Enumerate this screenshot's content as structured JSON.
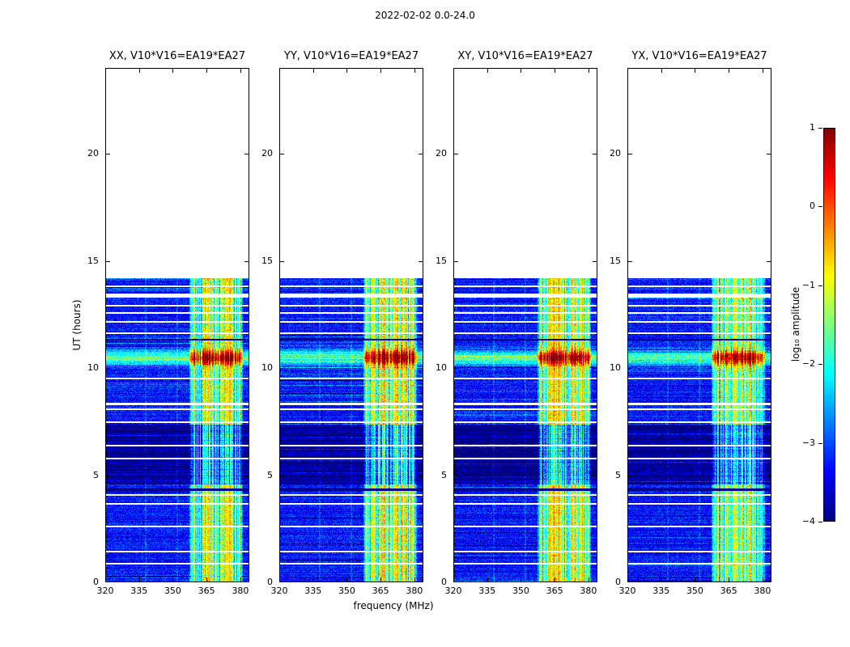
{
  "figure": {
    "title": "2022-02-02 0.0-24.0",
    "xlabel": "frequency (MHz)",
    "ylabel": "UT (hours)",
    "colorbar_label": "log₁₀ amplitude"
  },
  "chart_data": {
    "type": "heatmap",
    "title": "2022-02-02 0.0-24.0",
    "xlabel": "frequency (MHz)",
    "ylabel": "UT (hours)",
    "colormap": "jet",
    "panels": [
      {
        "title": "XX, V10*V16=EA19*EA27"
      },
      {
        "title": "YY, V10*V16=EA19*EA27"
      },
      {
        "title": "XY, V10*V16=EA19*EA27"
      },
      {
        "title": "YX, V10*V16=EA19*EA27"
      }
    ],
    "x_range": [
      320,
      384
    ],
    "x_ticks": [
      320,
      335,
      350,
      365,
      380
    ],
    "y_range": [
      0,
      24
    ],
    "y_ticks": [
      0,
      5,
      10,
      15,
      20
    ],
    "colorbar": {
      "label": "log₁₀ amplitude",
      "range": [
        -4,
        1
      ],
      "ticks": [
        1,
        0,
        -1,
        -2,
        -3,
        -4
      ]
    },
    "features": {
      "data_time_extent": [
        0,
        14.2
      ],
      "background_level": -3.3,
      "rfi_band": {
        "freq_start": 357.5,
        "freq_end": 381,
        "level": -1.5
      },
      "sub_bands": [
        {
          "freq_start": 363,
          "freq_end": 367,
          "boost": 0.35
        },
        {
          "freq_start": 371,
          "freq_end": 377,
          "boost": 0.2
        }
      ],
      "bright_event": {
        "time_start": 10.2,
        "time_end": 10.75,
        "center": 10.48,
        "sigma": 0.25,
        "amplitude": 2.1
      },
      "dark_interval": {
        "time_start": 4.55,
        "time_end": 7.35,
        "depth": 0.55,
        "stripe_fraction": 0.35
      },
      "missing_time_gaps": [
        [
          0.84,
          0.92
        ],
        [
          1.4,
          1.48
        ],
        [
          2.56,
          2.64
        ],
        [
          3.62,
          3.7
        ],
        [
          4.04,
          4.12
        ],
        [
          5.72,
          5.8
        ],
        [
          6.34,
          6.42
        ],
        [
          7.42,
          7.52
        ],
        [
          8.02,
          8.1
        ],
        [
          8.28,
          8.36
        ],
        [
          9.46,
          9.56
        ],
        [
          11.58,
          11.66
        ],
        [
          12.12,
          12.2
        ],
        [
          12.52,
          12.6
        ],
        [
          12.86,
          12.94
        ],
        [
          13.28,
          13.48
        ],
        [
          13.76,
          13.86
        ]
      ],
      "dark_rows": [
        [
          4.28,
          4.38
        ],
        [
          11.28,
          11.36
        ]
      ],
      "faint_vertical_lines_mhz": [
        338,
        352
      ]
    }
  }
}
